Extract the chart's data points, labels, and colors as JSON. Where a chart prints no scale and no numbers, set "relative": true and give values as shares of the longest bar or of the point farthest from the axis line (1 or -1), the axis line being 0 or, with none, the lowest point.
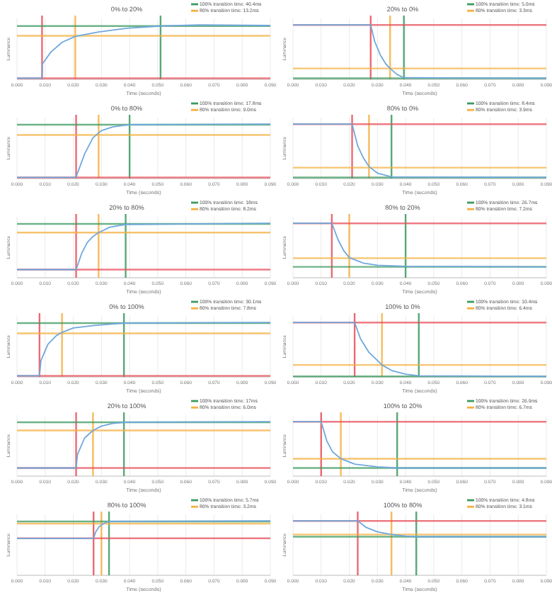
{
  "chart_data": [
    {
      "type": "line",
      "title": "0% to 20%",
      "xlabel": "Time (seconds)",
      "ylabel": "Luminance",
      "relative": true,
      "color": "#6fa8dc",
      "grid": "x",
      "xlim": [
        0,
        0.09
      ],
      "xticks": [
        {
          "value": 0,
          "label": "0.000"
        },
        {
          "value": 0.01,
          "label": "0.010"
        },
        {
          "value": 0.02,
          "label": "0.020"
        },
        {
          "value": 0.03,
          "label": "0.030"
        },
        {
          "value": 0.04,
          "label": "0.040"
        },
        {
          "value": 0.05,
          "label": "0.050"
        },
        {
          "value": 0.06,
          "label": "0.060"
        },
        {
          "value": 0.07,
          "label": "0.070"
        },
        {
          "value": 0.08,
          "label": "0.080"
        },
        {
          "value": 0.09,
          "label": "0.090"
        }
      ],
      "x": [
        0,
        0.0089,
        0.009,
        0.012,
        0.016,
        0.0207,
        0.029,
        0.039,
        0.051,
        0.065,
        0.09
      ],
      "values": [
        0.02,
        0.02,
        0.28,
        0.5,
        0.68,
        0.79,
        0.87,
        0.94,
        0.98,
        1,
        0.99
      ],
      "annotations": [
        "100% transition time: 40.4ms",
        "80% transition time: 13.2ms"
      ],
      "ref_lines": [
        {
          "axis": "x",
          "value": 0.0089,
          "color": "#e8505b"
        },
        {
          "axis": "x",
          "value": 0.051,
          "color": "#3c9a5f"
        },
        {
          "axis": "x",
          "value": 0.0207,
          "color": "#f5b041"
        },
        {
          "axis": "y",
          "value": 0.02,
          "color": "#e8505b"
        },
        {
          "axis": "y",
          "value": 0.8,
          "color": "#f5b041"
        },
        {
          "axis": "y",
          "value": 0.98,
          "color": "#3c9a5f"
        }
      ]
    },
    {
      "type": "line",
      "title": "20% to 0%",
      "xlabel": "Time (seconds)",
      "ylabel": "Luminance",
      "relative": true,
      "color": "#6fa8dc",
      "grid": "x",
      "xlim": [
        0,
        0.09
      ],
      "xticks": [
        {
          "value": 0,
          "label": "0.000"
        },
        {
          "value": 0.01,
          "label": "0.010"
        },
        {
          "value": 0.02,
          "label": "0.020"
        },
        {
          "value": 0.03,
          "label": "0.030"
        },
        {
          "value": 0.04,
          "label": "0.040"
        },
        {
          "value": 0.05,
          "label": "0.050"
        },
        {
          "value": 0.06,
          "label": "0.060"
        },
        {
          "value": 0.07,
          "label": "0.070"
        },
        {
          "value": 0.08,
          "label": "0.080"
        },
        {
          "value": 0.09,
          "label": "0.090"
        }
      ],
      "x": [
        0,
        0.0276,
        0.029,
        0.031,
        0.033,
        0.0345,
        0.037,
        0.0394,
        0.09
      ],
      "values": [
        1,
        1,
        0.7,
        0.45,
        0.28,
        0.2,
        0.09,
        0.03,
        0.02
      ],
      "annotations": [
        "100% transition time: 5.0ms",
        "80% transition time: 3.3ms"
      ],
      "ref_lines": [
        {
          "axis": "x",
          "value": 0.0276,
          "color": "#e8505b"
        },
        {
          "axis": "x",
          "value": 0.0394,
          "color": "#3c9a5f"
        },
        {
          "axis": "x",
          "value": 0.0345,
          "color": "#f5b041"
        },
        {
          "axis": "y",
          "value": 1,
          "color": "#e8505b"
        },
        {
          "axis": "y",
          "value": 0.2,
          "color": "#f5b041"
        },
        {
          "axis": "y",
          "value": 0.02,
          "color": "#3c9a5f"
        }
      ]
    },
    {
      "type": "line",
      "title": "0% to 80%",
      "xlabel": "Time (seconds)",
      "ylabel": "Luminance",
      "relative": true,
      "color": "#6fa8dc",
      "grid": "x",
      "xlim": [
        0,
        0.09
      ],
      "xticks": [
        {
          "value": 0,
          "label": "0.000"
        },
        {
          "value": 0.01,
          "label": "0.010"
        },
        {
          "value": 0.02,
          "label": "0.020"
        },
        {
          "value": 0.03,
          "label": "0.030"
        },
        {
          "value": 0.04,
          "label": "0.040"
        },
        {
          "value": 0.05,
          "label": "0.050"
        },
        {
          "value": 0.06,
          "label": "0.060"
        },
        {
          "value": 0.07,
          "label": "0.070"
        },
        {
          "value": 0.08,
          "label": "0.080"
        },
        {
          "value": 0.09,
          "label": "0.090"
        }
      ],
      "x": [
        0,
        0.021,
        0.0215,
        0.024,
        0.027,
        0.03,
        0.034,
        0.04,
        0.09
      ],
      "values": [
        0.02,
        0.02,
        0.1,
        0.45,
        0.75,
        0.88,
        0.95,
        0.99,
        1
      ],
      "annotations": [
        "100% transition time: 17.8ms",
        "80% transition time: 9.0ms"
      ],
      "ref_lines": [
        {
          "axis": "x",
          "value": 0.021,
          "color": "#e8505b"
        },
        {
          "axis": "x",
          "value": 0.04,
          "color": "#3c9a5f"
        },
        {
          "axis": "x",
          "value": 0.029,
          "color": "#f5b041"
        },
        {
          "axis": "y",
          "value": 0.02,
          "color": "#e8505b"
        },
        {
          "axis": "y",
          "value": 0.8,
          "color": "#f5b041"
        },
        {
          "axis": "y",
          "value": 0.99,
          "color": "#3c9a5f"
        }
      ]
    },
    {
      "type": "line",
      "title": "80% to 0%",
      "xlabel": "Time (seconds)",
      "ylabel": "Luminance",
      "relative": true,
      "color": "#6fa8dc",
      "grid": "x",
      "xlim": [
        0,
        0.09
      ],
      "xticks": [
        {
          "value": 0,
          "label": "0.000"
        },
        {
          "value": 0.01,
          "label": "0.010"
        },
        {
          "value": 0.02,
          "label": "0.020"
        },
        {
          "value": 0.03,
          "label": "0.030"
        },
        {
          "value": 0.04,
          "label": "0.040"
        },
        {
          "value": 0.05,
          "label": "0.050"
        },
        {
          "value": 0.06,
          "label": "0.060"
        },
        {
          "value": 0.07,
          "label": "0.070"
        },
        {
          "value": 0.08,
          "label": "0.080"
        },
        {
          "value": 0.09,
          "label": "0.090"
        }
      ],
      "x": [
        0,
        0.021,
        0.023,
        0.025,
        0.027,
        0.03,
        0.035,
        0.09
      ],
      "values": [
        1,
        1,
        0.6,
        0.38,
        0.22,
        0.1,
        0.03,
        0.02
      ],
      "annotations": [
        "100% transition time: 8.4ms",
        "80% transition time: 3.9ms"
      ],
      "ref_lines": [
        {
          "axis": "x",
          "value": 0.021,
          "color": "#e8505b"
        },
        {
          "axis": "x",
          "value": 0.035,
          "color": "#3c9a5f"
        },
        {
          "axis": "x",
          "value": 0.027,
          "color": "#f5b041"
        },
        {
          "axis": "y",
          "value": 1,
          "color": "#e8505b"
        },
        {
          "axis": "y",
          "value": 0.2,
          "color": "#f5b041"
        },
        {
          "axis": "y",
          "value": 0.02,
          "color": "#3c9a5f"
        }
      ]
    },
    {
      "type": "line",
      "title": "20% to 80%",
      "xlabel": "Time (seconds)",
      "ylabel": "Luminance",
      "relative": true,
      "color": "#6fa8dc",
      "grid": "x",
      "xlim": [
        0,
        0.09
      ],
      "xticks": [
        {
          "value": 0,
          "label": "0.000"
        },
        {
          "value": 0.01,
          "label": "0.010"
        },
        {
          "value": 0.02,
          "label": "0.020"
        },
        {
          "value": 0.03,
          "label": "0.030"
        },
        {
          "value": 0.04,
          "label": "0.040"
        },
        {
          "value": 0.05,
          "label": "0.050"
        },
        {
          "value": 0.06,
          "label": "0.060"
        },
        {
          "value": 0.07,
          "label": "0.070"
        },
        {
          "value": 0.08,
          "label": "0.080"
        },
        {
          "value": 0.09,
          "label": "0.090"
        }
      ],
      "x": [
        0,
        0.021,
        0.023,
        0.025,
        0.027,
        0.029,
        0.033,
        0.0386,
        0.09
      ],
      "values": [
        0.15,
        0.15,
        0.45,
        0.65,
        0.76,
        0.83,
        0.93,
        0.98,
        1
      ],
      "annotations": [
        "100% transition time: 18ms",
        "80% transition time: 8.2ms"
      ],
      "ref_lines": [
        {
          "axis": "x",
          "value": 0.021,
          "color": "#e8505b"
        },
        {
          "axis": "x",
          "value": 0.0386,
          "color": "#3c9a5f"
        },
        {
          "axis": "x",
          "value": 0.029,
          "color": "#f5b041"
        },
        {
          "axis": "y",
          "value": 0.15,
          "color": "#e8505b"
        },
        {
          "axis": "y",
          "value": 0.83,
          "color": "#f5b041"
        },
        {
          "axis": "y",
          "value": 0.99,
          "color": "#3c9a5f"
        }
      ]
    },
    {
      "type": "line",
      "title": "80% to 20%",
      "xlabel": "Time (seconds)",
      "ylabel": "Luminance",
      "relative": true,
      "color": "#6fa8dc",
      "grid": "x",
      "xlim": [
        0,
        0.09
      ],
      "xticks": [
        {
          "value": 0,
          "label": "0.000"
        },
        {
          "value": 0.01,
          "label": "0.010"
        },
        {
          "value": 0.02,
          "label": "0.020"
        },
        {
          "value": 0.03,
          "label": "0.030"
        },
        {
          "value": 0.04,
          "label": "0.040"
        },
        {
          "value": 0.05,
          "label": "0.050"
        },
        {
          "value": 0.06,
          "label": "0.060"
        },
        {
          "value": 0.07,
          "label": "0.070"
        },
        {
          "value": 0.08,
          "label": "0.080"
        },
        {
          "value": 0.09,
          "label": "0.090"
        }
      ],
      "x": [
        0,
        0.0138,
        0.016,
        0.018,
        0.02,
        0.025,
        0.03,
        0.04,
        0.09
      ],
      "values": [
        1,
        1,
        0.7,
        0.5,
        0.37,
        0.27,
        0.23,
        0.21,
        0.2
      ],
      "annotations": [
        "100% transition time: 26.7ms",
        "80% transition time: 7.2ms"
      ],
      "ref_lines": [
        {
          "axis": "x",
          "value": 0.0138,
          "color": "#e8505b"
        },
        {
          "axis": "x",
          "value": 0.04,
          "color": "#3c9a5f"
        },
        {
          "axis": "x",
          "value": 0.02,
          "color": "#f5b041"
        },
        {
          "axis": "y",
          "value": 1,
          "color": "#e8505b"
        },
        {
          "axis": "y",
          "value": 0.36,
          "color": "#f5b041"
        },
        {
          "axis": "y",
          "value": 0.2,
          "color": "#3c9a5f"
        }
      ]
    },
    {
      "type": "line",
      "title": "0% to 100%",
      "xlabel": "Time (seconds)",
      "ylabel": "Luminance",
      "relative": true,
      "color": "#6fa8dc",
      "grid": "x",
      "xlim": [
        0,
        0.09
      ],
      "xticks": [
        {
          "value": 0,
          "label": "0.000"
        },
        {
          "value": 0.01,
          "label": "0.010"
        },
        {
          "value": 0.02,
          "label": "0.020"
        },
        {
          "value": 0.03,
          "label": "0.030"
        },
        {
          "value": 0.04,
          "label": "0.040"
        },
        {
          "value": 0.05,
          "label": "0.050"
        },
        {
          "value": 0.06,
          "label": "0.060"
        },
        {
          "value": 0.07,
          "label": "0.070"
        },
        {
          "value": 0.08,
          "label": "0.080"
        },
        {
          "value": 0.09,
          "label": "0.090"
        }
      ],
      "x": [
        0,
        0.008,
        0.0085,
        0.011,
        0.014,
        0.016,
        0.02,
        0.028,
        0.038,
        0.09
      ],
      "values": [
        0.02,
        0.02,
        0.3,
        0.6,
        0.76,
        0.82,
        0.9,
        0.95,
        0.99,
        1
      ],
      "annotations": [
        "100% transition time: 30.1ms",
        "80% transition time: 7.8ms"
      ],
      "ref_lines": [
        {
          "axis": "x",
          "value": 0.008,
          "color": "#e8505b"
        },
        {
          "axis": "x",
          "value": 0.038,
          "color": "#3c9a5f"
        },
        {
          "axis": "x",
          "value": 0.016,
          "color": "#f5b041"
        },
        {
          "axis": "y",
          "value": 0.02,
          "color": "#e8505b"
        },
        {
          "axis": "y",
          "value": 0.8,
          "color": "#f5b041"
        },
        {
          "axis": "y",
          "value": 0.99,
          "color": "#3c9a5f"
        }
      ]
    },
    {
      "type": "line",
      "title": "100% to 0%",
      "xlabel": "Time (seconds)",
      "ylabel": "Luminance",
      "relative": true,
      "color": "#6fa8dc",
      "grid": "x",
      "xlim": [
        0,
        0.09
      ],
      "xticks": [
        {
          "value": 0,
          "label": "0.000"
        },
        {
          "value": 0.01,
          "label": "0.010"
        },
        {
          "value": 0.02,
          "label": "0.020"
        },
        {
          "value": 0.03,
          "label": "0.030"
        },
        {
          "value": 0.04,
          "label": "0.040"
        },
        {
          "value": 0.05,
          "label": "0.050"
        },
        {
          "value": 0.06,
          "label": "0.060"
        },
        {
          "value": 0.07,
          "label": "0.070"
        },
        {
          "value": 0.08,
          "label": "0.080"
        },
        {
          "value": 0.09,
          "label": "0.090"
        }
      ],
      "x": [
        0,
        0.0219,
        0.024,
        0.027,
        0.03,
        0.0316,
        0.035,
        0.04,
        0.0447,
        0.09
      ],
      "values": [
        1,
        1,
        0.7,
        0.45,
        0.3,
        0.22,
        0.12,
        0.05,
        0.02,
        0.01
      ],
      "annotations": [
        "100% transition time: 10.4ms",
        "80% transition time: 6.4ms"
      ],
      "ref_lines": [
        {
          "axis": "x",
          "value": 0.0219,
          "color": "#e8505b"
        },
        {
          "axis": "x",
          "value": 0.0447,
          "color": "#3c9a5f"
        },
        {
          "axis": "x",
          "value": 0.0316,
          "color": "#f5b041"
        },
        {
          "axis": "y",
          "value": 1,
          "color": "#e8505b"
        },
        {
          "axis": "y",
          "value": 0.22,
          "color": "#f5b041"
        },
        {
          "axis": "y",
          "value": 0.01,
          "color": "#3c9a5f"
        }
      ]
    },
    {
      "type": "line",
      "title": "20% to 100%",
      "xlabel": "Time (seconds)",
      "ylabel": "Luminance",
      "relative": true,
      "color": "#6fa8dc",
      "grid": "x",
      "xlim": [
        0,
        0.09
      ],
      "xticks": [
        {
          "value": 0,
          "label": "0.000"
        },
        {
          "value": 0.01,
          "label": "0.010"
        },
        {
          "value": 0.02,
          "label": "0.020"
        },
        {
          "value": 0.03,
          "label": "0.030"
        },
        {
          "value": 0.04,
          "label": "0.040"
        },
        {
          "value": 0.05,
          "label": "0.050"
        },
        {
          "value": 0.06,
          "label": "0.060"
        },
        {
          "value": 0.07,
          "label": "0.070"
        },
        {
          "value": 0.08,
          "label": "0.080"
        },
        {
          "value": 0.09,
          "label": "0.090"
        }
      ],
      "x": [
        0,
        0.021,
        0.0215,
        0.024,
        0.027,
        0.03,
        0.034,
        0.038,
        0.09
      ],
      "values": [
        0.15,
        0.15,
        0.4,
        0.7,
        0.84,
        0.92,
        0.97,
        0.99,
        1
      ],
      "annotations": [
        "100% transition time: 17ms",
        "80% transition time: 6.0ms"
      ],
      "ref_lines": [
        {
          "axis": "x",
          "value": 0.021,
          "color": "#e8505b"
        },
        {
          "axis": "x",
          "value": 0.038,
          "color": "#3c9a5f"
        },
        {
          "axis": "x",
          "value": 0.027,
          "color": "#f5b041"
        },
        {
          "axis": "y",
          "value": 0.15,
          "color": "#e8505b"
        },
        {
          "axis": "y",
          "value": 0.84,
          "color": "#f5b041"
        },
        {
          "axis": "y",
          "value": 0.99,
          "color": "#3c9a5f"
        }
      ]
    },
    {
      "type": "line",
      "title": "100% to 20%",
      "xlabel": "Time (seconds)",
      "ylabel": "Luminance",
      "relative": true,
      "color": "#6fa8dc",
      "grid": "x",
      "xlim": [
        0,
        0.09
      ],
      "xticks": [
        {
          "value": 0,
          "label": "0.000"
        },
        {
          "value": 0.01,
          "label": "0.010"
        },
        {
          "value": 0.02,
          "label": "0.020"
        },
        {
          "value": 0.03,
          "label": "0.030"
        },
        {
          "value": 0.04,
          "label": "0.040"
        },
        {
          "value": 0.05,
          "label": "0.050"
        },
        {
          "value": 0.06,
          "label": "0.060"
        },
        {
          "value": 0.07,
          "label": "0.070"
        },
        {
          "value": 0.08,
          "label": "0.080"
        },
        {
          "value": 0.09,
          "label": "0.090"
        }
      ],
      "x": [
        0,
        0.01,
        0.012,
        0.014,
        0.017,
        0.022,
        0.03,
        0.037,
        0.09
      ],
      "values": [
        1,
        1,
        0.65,
        0.45,
        0.32,
        0.22,
        0.17,
        0.15,
        0.15
      ],
      "annotations": [
        "100% transition time: 26.9ms",
        "80% transition time: 6.7ms"
      ],
      "ref_lines": [
        {
          "axis": "x",
          "value": 0.01,
          "color": "#e8505b"
        },
        {
          "axis": "x",
          "value": 0.037,
          "color": "#3c9a5f"
        },
        {
          "axis": "x",
          "value": 0.017,
          "color": "#f5b041"
        },
        {
          "axis": "y",
          "value": 1,
          "color": "#e8505b"
        },
        {
          "axis": "y",
          "value": 0.32,
          "color": "#f5b041"
        },
        {
          "axis": "y",
          "value": 0.15,
          "color": "#3c9a5f"
        }
      ]
    },
    {
      "type": "line",
      "title": "80% to 100%",
      "xlabel": "Time (seconds)",
      "ylabel": "Luminance",
      "relative": true,
      "color": "#6fa8dc",
      "grid": "x",
      "xlim": [
        0,
        0.09
      ],
      "xticks": [
        {
          "value": 0,
          "label": "0.000"
        },
        {
          "value": 0.01,
          "label": "0.010"
        },
        {
          "value": 0.02,
          "label": "0.020"
        },
        {
          "value": 0.03,
          "label": "0.030"
        },
        {
          "value": 0.04,
          "label": "0.040"
        },
        {
          "value": 0.05,
          "label": "0.050"
        },
        {
          "value": 0.06,
          "label": "0.060"
        },
        {
          "value": 0.07,
          "label": "0.070"
        },
        {
          "value": 0.08,
          "label": "0.080"
        },
        {
          "value": 0.09,
          "label": "0.090"
        }
      ],
      "x": [
        0,
        0.0272,
        0.028,
        0.029,
        0.03,
        0.0315,
        0.0327,
        0.09
      ],
      "values": [
        0.68,
        0.68,
        0.8,
        0.88,
        0.93,
        0.97,
        0.99,
        1
      ],
      "annotations": [
        "100% transition time: 5.7ms",
        "80% transition time: 3.2ms"
      ],
      "ref_lines": [
        {
          "axis": "x",
          "value": 0.0272,
          "color": "#e8505b"
        },
        {
          "axis": "x",
          "value": 0.0327,
          "color": "#3c9a5f"
        },
        {
          "axis": "x",
          "value": 0.03,
          "color": "#f5b041"
        },
        {
          "axis": "y",
          "value": 0.68,
          "color": "#e8505b"
        },
        {
          "axis": "y",
          "value": 0.95,
          "color": "#f5b041"
        },
        {
          "axis": "y",
          "value": 0.99,
          "color": "#3c9a5f"
        }
      ]
    },
    {
      "type": "line",
      "title": "100% to 80%",
      "xlabel": "Time (seconds)",
      "ylabel": "Luminance",
      "relative": true,
      "color": "#6fa8dc",
      "grid": "x",
      "xlim": [
        0,
        0.09
      ],
      "xticks": [
        {
          "value": 0,
          "label": "0.000"
        },
        {
          "value": 0.01,
          "label": "0.010"
        },
        {
          "value": 0.02,
          "label": "0.020"
        },
        {
          "value": 0.03,
          "label": "0.030"
        },
        {
          "value": 0.04,
          "label": "0.040"
        },
        {
          "value": 0.05,
          "label": "0.050"
        },
        {
          "value": 0.06,
          "label": "0.060"
        },
        {
          "value": 0.07,
          "label": "0.070"
        },
        {
          "value": 0.08,
          "label": "0.080"
        },
        {
          "value": 0.09,
          "label": "0.090"
        }
      ],
      "x": [
        0,
        0.023,
        0.026,
        0.03,
        0.035,
        0.04,
        0.0438,
        0.09
      ],
      "values": [
        1,
        1,
        0.88,
        0.8,
        0.75,
        0.72,
        0.71,
        0.71
      ],
      "annotations": [
        "100% transition time: 4.8ms",
        "80% transition time: 3.1ms"
      ],
      "ref_lines": [
        {
          "axis": "x",
          "value": 0.023,
          "color": "#e8505b"
        },
        {
          "axis": "x",
          "value": 0.0438,
          "color": "#3c9a5f"
        },
        {
          "axis": "x",
          "value": 0.035,
          "color": "#f5b041"
        },
        {
          "axis": "y",
          "value": 1,
          "color": "#e8505b"
        },
        {
          "axis": "y",
          "value": 0.75,
          "color": "#f5b041"
        },
        {
          "axis": "y",
          "value": 0.71,
          "color": "#3c9a5f"
        }
      ]
    }
  ]
}
